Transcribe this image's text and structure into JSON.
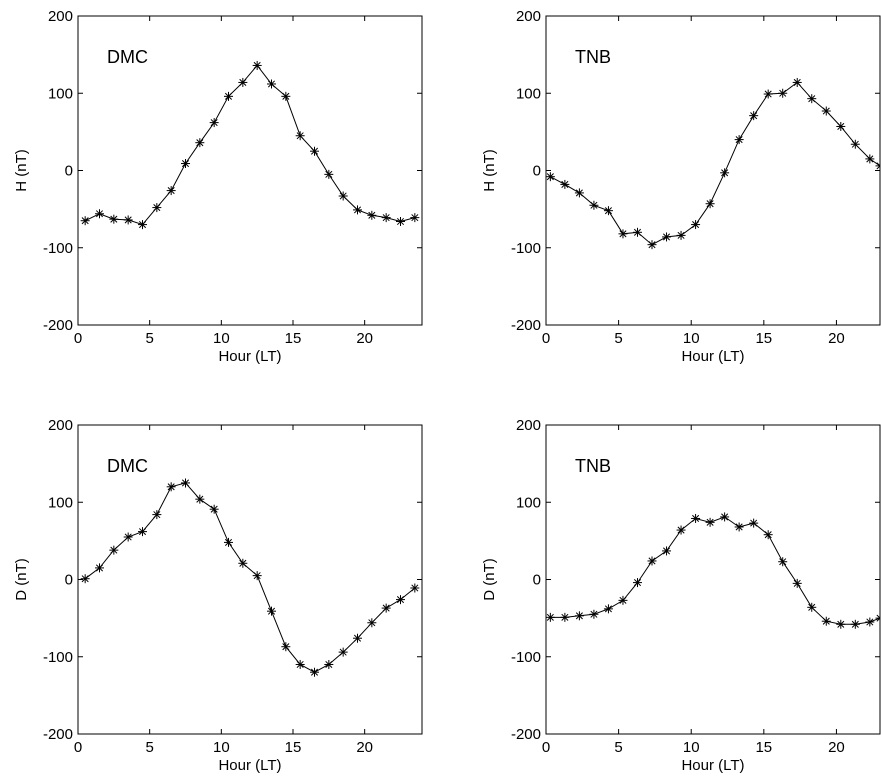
{
  "chart_data": [
    {
      "type": "line",
      "label": "DMC",
      "xlabel": "Hour (LT)",
      "ylabel": "H (nT)",
      "xlim": [
        0,
        24
      ],
      "ylim": [
        -200,
        200
      ],
      "xticks": [
        0,
        5,
        10,
        15,
        20
      ],
      "yticks": [
        -200,
        -100,
        0,
        100,
        200
      ],
      "marker": "asterisk",
      "line_color": "#000000",
      "grid": false,
      "x": [
        0.5,
        1.5,
        2.5,
        3.5,
        4.5,
        5.5,
        6.5,
        7.5,
        8.5,
        9.5,
        10.5,
        11.5,
        12.5,
        13.5,
        14.5,
        15.5,
        16.5,
        17.5,
        18.5,
        19.5,
        20.5,
        21.5,
        22.5,
        23.5
      ],
      "y": [
        -65,
        -56,
        -63,
        -64,
        -70,
        -48,
        -26,
        9,
        36,
        62,
        96,
        114,
        136,
        112,
        96,
        45,
        25,
        -5,
        -33,
        -51,
        -58,
        -61,
        -66,
        -61
      ]
    },
    {
      "type": "line",
      "label": "TNB",
      "xlabel": "Hour (LT)",
      "ylabel": "H (nT)",
      "xlim": [
        0,
        23
      ],
      "ylim": [
        -200,
        200
      ],
      "xticks": [
        0,
        5,
        10,
        15,
        20
      ],
      "yticks": [
        -200,
        -100,
        0,
        100,
        200
      ],
      "marker": "asterisk",
      "line_color": "#000000",
      "grid": false,
      "x": [
        0.3,
        1.3,
        2.3,
        3.3,
        4.3,
        5.3,
        6.3,
        7.3,
        8.3,
        9.3,
        10.3,
        11.3,
        12.3,
        13.3,
        14.3,
        15.3,
        16.3,
        17.3,
        18.3,
        19.3,
        20.3,
        21.3,
        22.3,
        23.0
      ],
      "y": [
        -8,
        -18,
        -29,
        -45,
        -52,
        -82,
        -80,
        -96,
        -86,
        -84,
        -70,
        -43,
        -3,
        40,
        71,
        99,
        100,
        114,
        93,
        77,
        57,
        34,
        15,
        6
      ]
    },
    {
      "type": "line",
      "label": "DMC",
      "xlabel": "Hour (LT)",
      "ylabel": "D (nT)",
      "xlim": [
        0,
        24
      ],
      "ylim": [
        -200,
        200
      ],
      "xticks": [
        0,
        5,
        10,
        15,
        20
      ],
      "yticks": [
        -200,
        -100,
        0,
        100,
        200
      ],
      "marker": "asterisk",
      "line_color": "#000000",
      "grid": false,
      "x": [
        0.5,
        1.5,
        2.5,
        3.5,
        4.5,
        5.5,
        6.5,
        7.5,
        8.5,
        9.5,
        10.5,
        11.5,
        12.5,
        13.5,
        14.5,
        15.5,
        16.5,
        17.5,
        18.5,
        19.5,
        20.5,
        21.5,
        22.5,
        23.5
      ],
      "y": [
        1,
        15,
        38,
        55,
        62,
        84,
        120,
        125,
        104,
        91,
        48,
        21,
        5,
        -41,
        -87,
        -110,
        -120,
        -110,
        -94,
        -76,
        -56,
        -37,
        -26,
        -11
      ]
    },
    {
      "type": "line",
      "label": "TNB",
      "xlabel": "Hour (LT)",
      "ylabel": "D (nT)",
      "xlim": [
        0,
        23
      ],
      "ylim": [
        -200,
        200
      ],
      "xticks": [
        0,
        5,
        10,
        15,
        20
      ],
      "yticks": [
        -200,
        -100,
        0,
        100,
        200
      ],
      "marker": "asterisk",
      "line_color": "#000000",
      "grid": false,
      "x": [
        0.3,
        1.3,
        2.3,
        3.3,
        4.3,
        5.3,
        6.3,
        7.3,
        8.3,
        9.3,
        10.3,
        11.3,
        12.3,
        13.3,
        14.3,
        15.3,
        16.3,
        17.3,
        18.3,
        19.3,
        20.3,
        21.3,
        22.3,
        23.0
      ],
      "y": [
        -49,
        -49,
        -47,
        -45,
        -38,
        -27,
        -4,
        24,
        37,
        64,
        79,
        74,
        81,
        68,
        73,
        58,
        23,
        -5,
        -36,
        -54,
        -58,
        -58,
        -55,
        -50
      ]
    }
  ]
}
